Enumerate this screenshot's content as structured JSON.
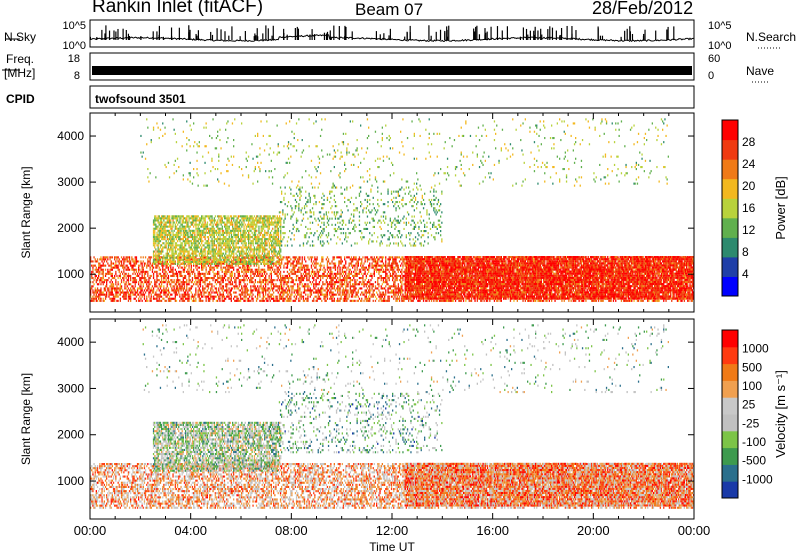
{
  "header": {
    "station": "Rankin Inlet (fitACF)",
    "beam": "Beam 07",
    "date": "28/Feb/2012"
  },
  "left_labels": {
    "nsky": "N.Sky",
    "freq_line1": "Freq.",
    "freq_line2": "[MHz]",
    "cpid": "CPID"
  },
  "right_labels": {
    "nsearch": "N.Search",
    "nave": "Nave"
  },
  "cpid_text": "twofsound 3501",
  "colors": {
    "power_scale": [
      "#0000ff",
      "#1f3fa8",
      "#2d8a6e",
      "#60b04e",
      "#b8d23b",
      "#f3b81f",
      "#f07a17",
      "#f03a10",
      "#ff0000"
    ],
    "velocity_scale": [
      "#1a3aa8",
      "#2a6f8c",
      "#3d9a4e",
      "#7cc447",
      "#c0c0c0",
      "#c8c8c8",
      "#f0a050",
      "#f07a17",
      "#ff3a10",
      "#ff0000"
    ]
  },
  "chart_data": [
    {
      "type": "line",
      "name": "noise-panel",
      "ylabel_left": "N.Sky",
      "ylabel_right": "N.Search",
      "yticks_left": [
        "10^5",
        "10^0"
      ],
      "yticks_right": [
        "10^5",
        "10^0"
      ],
      "ylim_log10": [
        0,
        5
      ]
    },
    {
      "type": "line",
      "name": "frequency-panel",
      "ylabel_left": "Freq. [MHz]",
      "ylabel_right": "Nave",
      "yticks_left": [
        "18",
        "8"
      ],
      "yticks_right": [
        "60",
        "0"
      ],
      "ylim_left": [
        8,
        18
      ],
      "ylim_right": [
        0,
        60
      ]
    },
    {
      "type": "heatmap",
      "name": "power-panel",
      "ylabel": "Slant Range [km]",
      "yticks": [
        "1000",
        "2000",
        "3000",
        "4000"
      ],
      "ylim": [
        180,
        4500
      ],
      "colorbar_label": "Power [dB]",
      "colorbar_ticks": [
        "4",
        "8",
        "12",
        "16",
        "20",
        "24",
        "28"
      ],
      "colorbar_range": [
        0,
        32
      ]
    },
    {
      "type": "heatmap",
      "name": "velocity-panel",
      "ylabel": "Slant Range [km]",
      "yticks": [
        "1000",
        "2000",
        "3000",
        "4000"
      ],
      "ylim": [
        180,
        4500
      ],
      "colorbar_label": "Velocity [m s⁻¹]",
      "colorbar_ticks": [
        "1000",
        "500",
        "100",
        "25",
        "-25",
        "-100",
        "-500",
        "-1000"
      ]
    }
  ],
  "xaxis": {
    "label": "Time UT",
    "ticks": [
      "00:00",
      "04:00",
      "08:00",
      "12:00",
      "16:00",
      "20:00",
      "00:00"
    ],
    "range_hours": [
      0,
      24
    ]
  }
}
